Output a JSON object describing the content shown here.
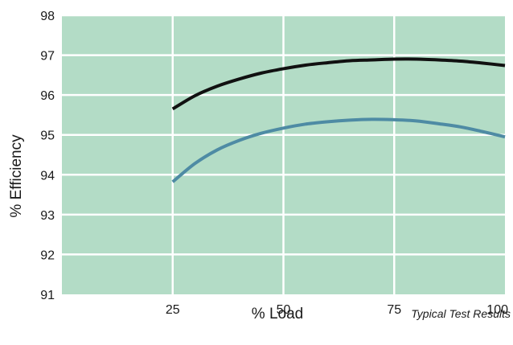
{
  "chart_data": {
    "type": "line",
    "title": "",
    "xlabel": "% Load",
    "ylabel": "% Efficiency",
    "note": "Typical Test Results",
    "xlim": [
      0,
      100
    ],
    "ylim": [
      91,
      98
    ],
    "x_ticks": [
      25,
      50,
      75,
      100
    ],
    "y_ticks": [
      91,
      92,
      93,
      94,
      95,
      96,
      97,
      98
    ],
    "grid": true,
    "colors": {
      "plot_bg": "#b3dcc6",
      "grid": "#ffffff"
    },
    "series": [
      {
        "color": "#111111",
        "x": [
          25,
          30,
          35,
          40,
          45,
          50,
          55,
          60,
          65,
          70,
          75,
          80,
          85,
          90,
          95,
          100
        ],
        "y": [
          95.65,
          95.98,
          96.22,
          96.4,
          96.55,
          96.66,
          96.75,
          96.81,
          96.86,
          96.88,
          96.9,
          96.9,
          96.88,
          96.85,
          96.8,
          96.74
        ]
      },
      {
        "color": "#4e8ba4",
        "x": [
          25,
          30,
          35,
          40,
          45,
          50,
          55,
          60,
          65,
          70,
          75,
          80,
          85,
          90,
          95,
          100
        ],
        "y": [
          93.82,
          94.28,
          94.62,
          94.86,
          95.04,
          95.17,
          95.27,
          95.33,
          95.37,
          95.39,
          95.38,
          95.35,
          95.28,
          95.2,
          95.08,
          94.95
        ]
      }
    ]
  }
}
